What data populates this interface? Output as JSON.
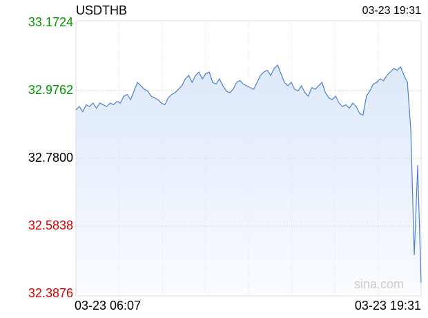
{
  "chart_data": {
    "type": "line",
    "title": "USDTHB",
    "timestamp": "03-23 19:31",
    "watermark": "sina.com",
    "categories": [
      "03-23 06:07",
      null,
      null,
      null,
      null,
      null,
      null,
      null,
      null,
      null,
      null,
      null,
      null,
      null,
      null,
      null,
      null,
      null,
      null,
      null,
      null,
      null,
      null,
      null,
      null,
      null,
      null,
      null,
      null,
      null,
      null,
      null,
      null,
      null,
      null,
      null,
      null,
      null,
      null,
      null,
      null,
      null,
      null,
      null,
      null,
      null,
      null,
      null,
      null,
      null,
      null,
      null,
      null,
      null,
      null,
      null,
      null,
      null,
      null,
      null,
      null,
      null,
      null,
      null,
      null,
      null,
      null,
      null,
      null,
      null,
      null,
      null,
      null,
      null,
      null,
      null,
      null,
      null,
      null,
      null,
      null,
      null,
      null,
      null,
      null,
      null,
      null,
      null,
      null,
      null,
      null,
      null,
      null,
      null,
      null,
      null,
      null,
      null,
      null,
      null,
      null,
      "03-23 19:31"
    ],
    "series": [
      {
        "name": "USDTHB",
        "color": "#4a7fcf",
        "values": [
          32.92,
          32.93,
          32.915,
          32.935,
          32.93,
          32.94,
          32.925,
          32.94,
          32.935,
          32.93,
          32.94,
          32.935,
          32.945,
          32.94,
          32.96,
          32.965,
          32.95,
          32.975,
          33.0,
          32.99,
          32.98,
          32.975,
          32.96,
          32.955,
          32.95,
          32.94,
          32.935,
          32.955,
          32.965,
          32.97,
          32.98,
          32.99,
          33.01,
          33.02,
          33.0,
          33.02,
          33.03,
          33.01,
          33.025,
          33.03,
          33.0,
          32.995,
          33.01,
          32.99,
          32.975,
          32.97,
          32.98,
          33.0,
          33.005,
          32.995,
          32.99,
          32.985,
          32.98,
          33.0,
          33.02,
          33.03,
          33.035,
          33.02,
          33.04,
          33.05,
          33.025,
          33.0,
          32.99,
          33.0,
          32.98,
          32.975,
          32.99,
          32.97,
          32.96,
          32.985,
          32.98,
          32.99,
          33.0,
          32.97,
          32.955,
          32.95,
          32.96,
          32.94,
          32.93,
          32.935,
          32.925,
          32.94,
          32.93,
          32.91,
          32.905,
          32.96,
          32.975,
          32.995,
          33.0,
          33.01,
          33.005,
          33.02,
          33.03,
          33.04,
          33.035,
          33.045,
          33.02,
          33.0,
          32.86,
          32.5,
          32.76,
          32.42
        ]
      }
    ],
    "ylim": [
      32.3876,
      33.1724
    ],
    "yticks": [
      32.3876,
      32.5838,
      {
        "value": 32.78,
        "label": "32.7800"
      },
      32.9762,
      33.1724
    ],
    "tick_colors": {
      "up": "#009900",
      "flat": "#000000",
      "down": "#dd0000"
    },
    "fill_color": "#dbe7fa",
    "grid": true
  }
}
